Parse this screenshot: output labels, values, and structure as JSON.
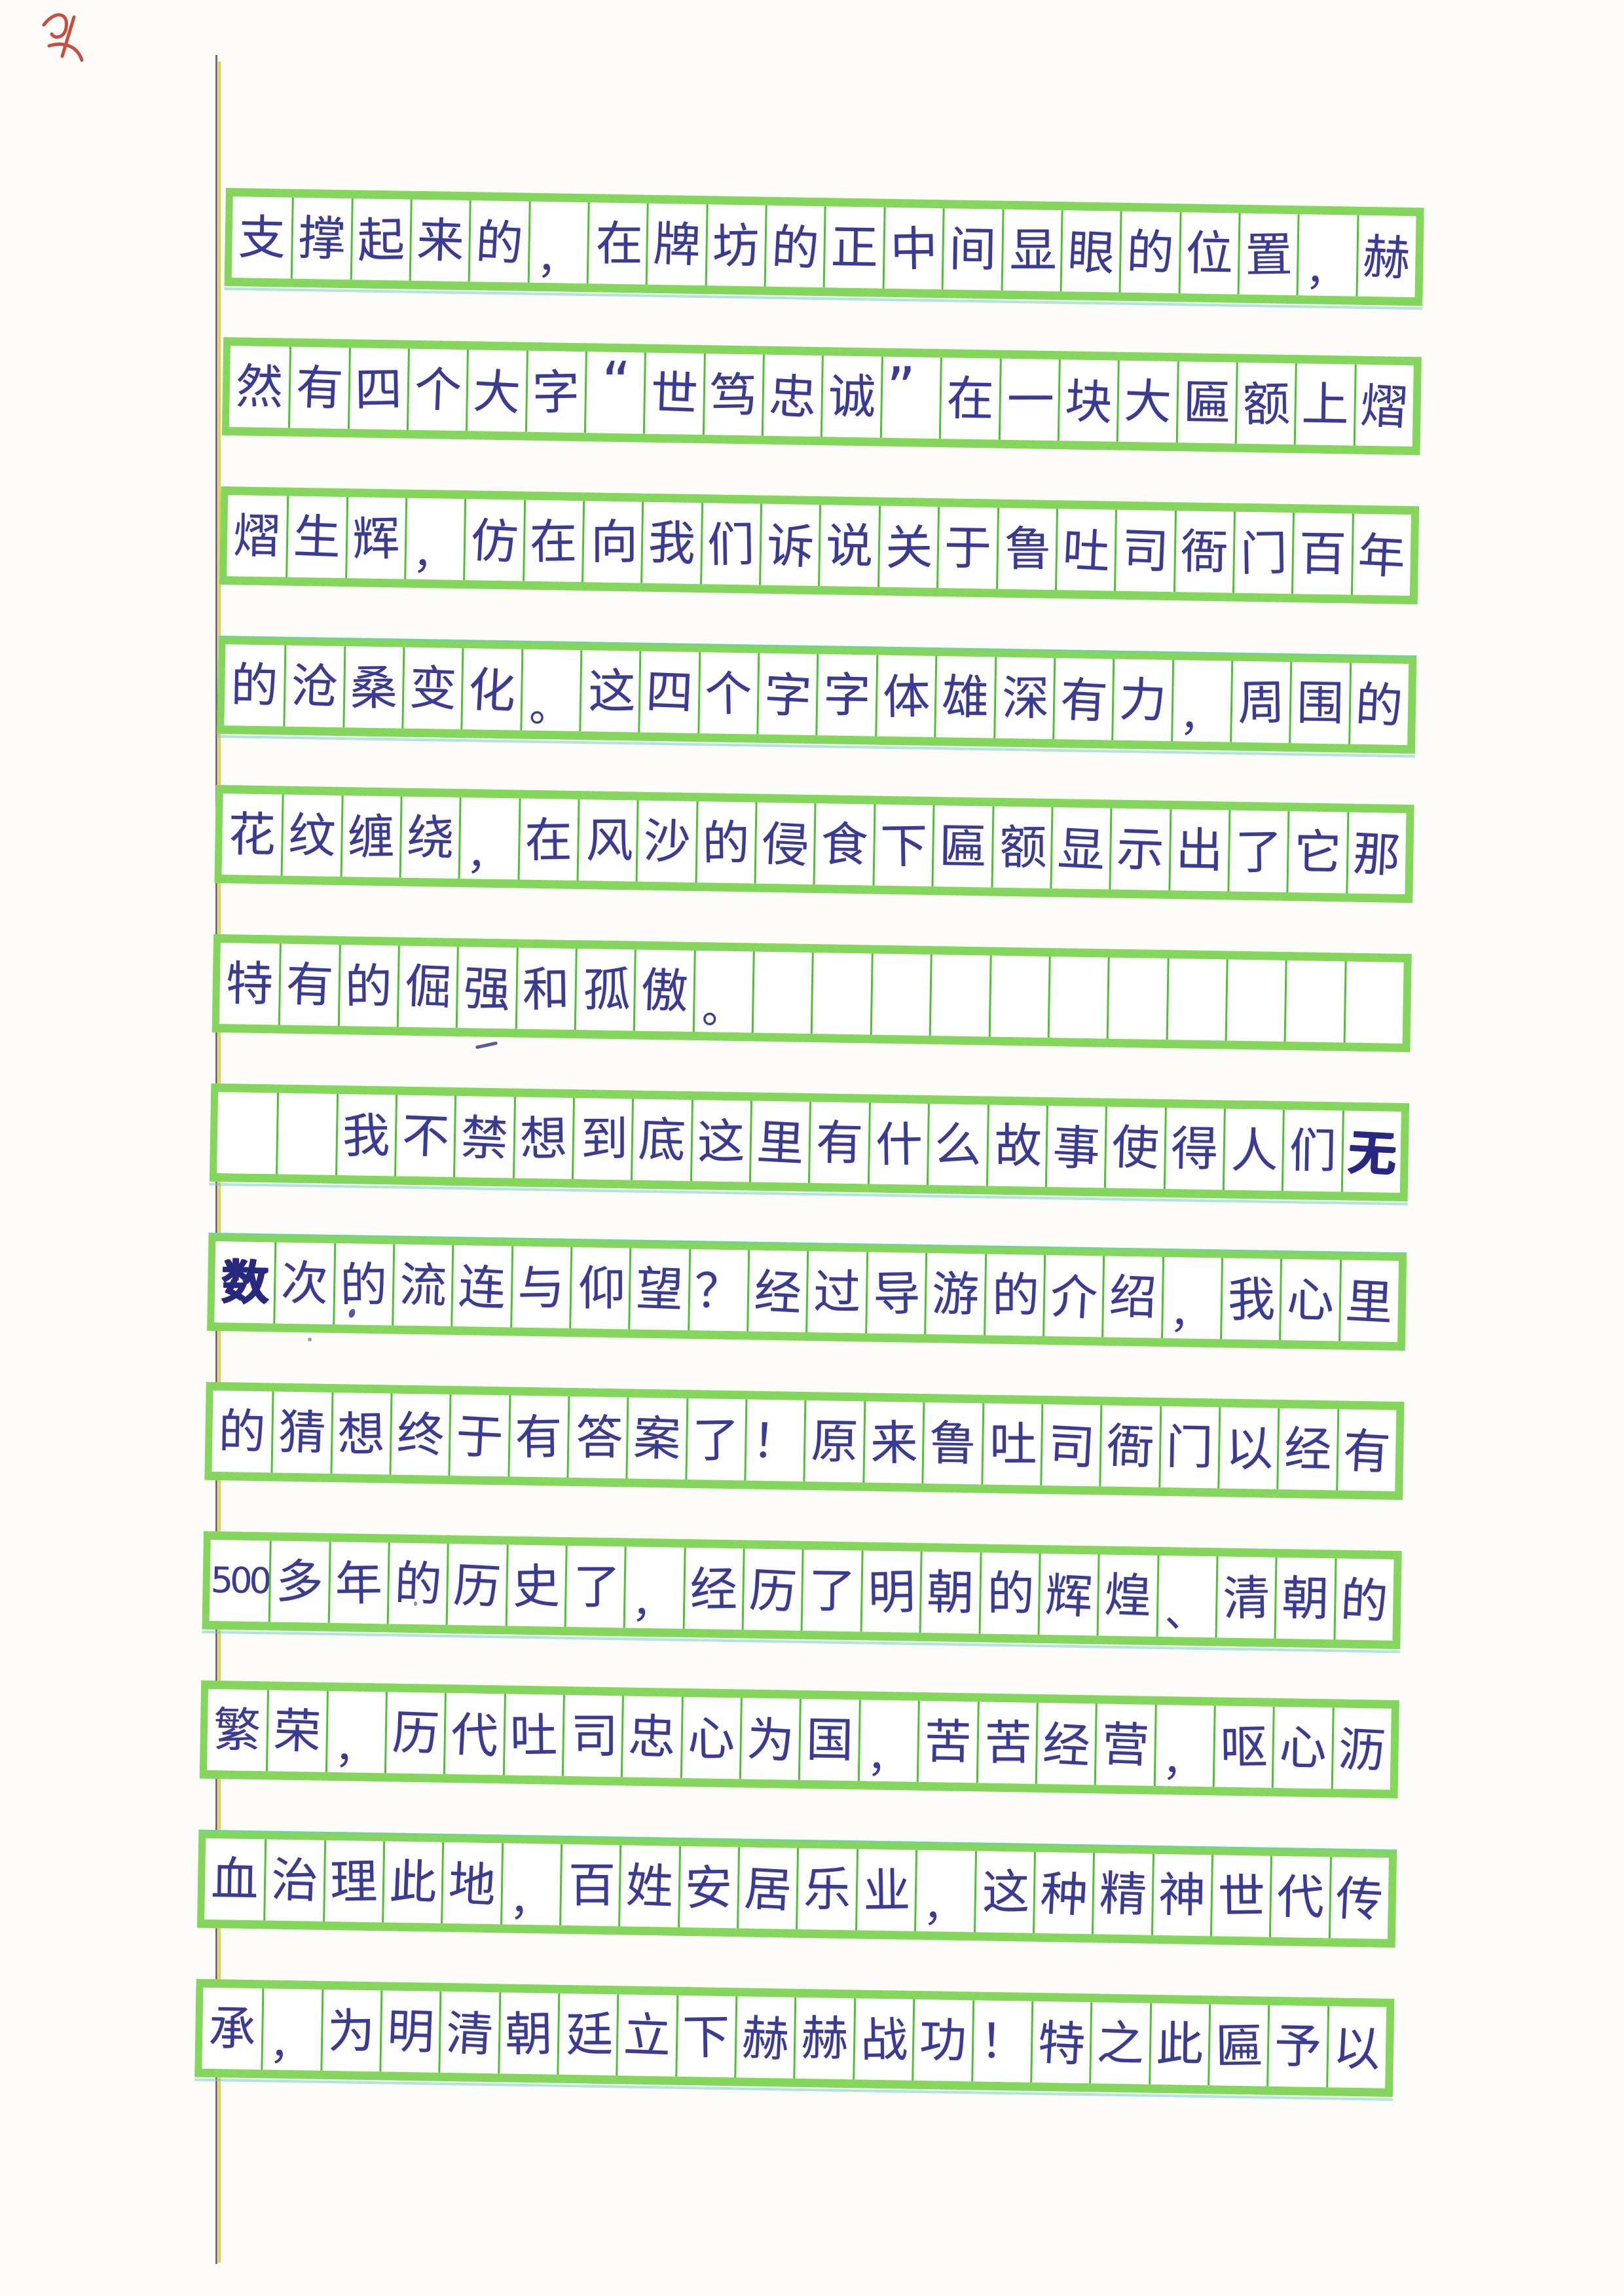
{
  "page": {
    "paper_color": "#fdfcf8",
    "cell_fill_color": "#ffffff",
    "grid_band_color": "#84d75c",
    "grid_line_color": "#50c136",
    "cyan_tint_color": "#62cdc0",
    "ink_color": "#3b3b94",
    "margin_line_dark_color": "#6e5666",
    "margin_line_yellow_color": "#e2cd3f",
    "red_mark_color": "#c63326",
    "columns_per_line": 20,
    "written_lines": 13
  },
  "lines": [
    [
      "支",
      "撑",
      "起",
      "来",
      "的",
      "，",
      "在",
      "牌",
      "坊",
      "的",
      "正",
      "中",
      "间",
      "显",
      "眼",
      "的",
      "位",
      "置",
      "，",
      "赫"
    ],
    [
      "然",
      "有",
      "四",
      "个",
      "大",
      "字",
      "“",
      "世",
      "笃",
      "忠",
      "诚",
      "”",
      "在",
      "一",
      "块",
      "大",
      "匾",
      "额",
      "上",
      "熠"
    ],
    [
      "熠",
      "生",
      "辉",
      "，",
      "仿",
      "在",
      "向",
      "我",
      "们",
      "诉",
      "说",
      "关",
      "于",
      "鲁",
      "吐",
      "司",
      "衙",
      "门",
      "百",
      "年"
    ],
    [
      "的",
      "沧",
      "桑",
      "变",
      "化",
      "。",
      "这",
      "四",
      "个",
      "字",
      "字",
      "体",
      "雄",
      "深",
      "有",
      "力",
      "，",
      "周",
      "围",
      "的"
    ],
    [
      "花",
      "纹",
      "缠",
      "绕",
      "，",
      "在",
      "风",
      "沙",
      "的",
      "侵",
      "食",
      "下",
      "匾",
      "额",
      "显",
      "示",
      "出",
      "了",
      "它",
      "那"
    ],
    [
      "特",
      "有",
      "的",
      "倔",
      "强",
      "和",
      "孤",
      "傲",
      "。",
      "",
      "",
      "",
      "",
      "",
      "",
      "",
      "",
      "",
      "",
      ""
    ],
    [
      "",
      "",
      "我",
      "不",
      "禁",
      "想",
      "到",
      "底",
      "这",
      "里",
      "有",
      "什",
      "么",
      "故",
      "事",
      "使",
      "得",
      "人",
      "们",
      "无"
    ],
    [
      "数",
      "次",
      "的",
      "流",
      "连",
      "与",
      "仰",
      "望",
      "？",
      "经",
      "过",
      "导",
      "游",
      "的",
      "介",
      "绍",
      "，",
      "我",
      "心",
      "里"
    ],
    [
      "的",
      "猜",
      "想",
      "终",
      "于",
      "有",
      "答",
      "案",
      "了",
      "！",
      "原",
      "来",
      "鲁",
      "吐",
      "司",
      "衙",
      "门",
      "以",
      "经",
      "有"
    ],
    [
      "500",
      "多",
      "年",
      "的",
      "历",
      "史",
      "了",
      "，",
      "经",
      "历",
      "了",
      "明",
      "朝",
      "的",
      "辉",
      "煌",
      "、",
      "清",
      "朝",
      "的"
    ],
    [
      "繁",
      "荣",
      "，",
      "历",
      "代",
      "吐",
      "司",
      "忠",
      "心",
      "为",
      "国",
      "，",
      "苦",
      "苦",
      "经",
      "营",
      "，",
      "呕",
      "心",
      "沥"
    ],
    [
      "血",
      "治",
      "理",
      "此",
      "地",
      "，",
      "百",
      "姓",
      "安",
      "居",
      "乐",
      "业",
      "，",
      "这",
      "种",
      "精",
      "神",
      "世",
      "代",
      "传"
    ],
    [
      "承",
      "，",
      "为",
      "明",
      "清",
      "朝",
      "廷",
      "立",
      "下",
      "赫",
      "赫",
      "战",
      "功",
      "！",
      "特",
      "之",
      "此",
      "匾",
      "予",
      "以"
    ]
  ],
  "emphasis": [
    [
      6,
      19
    ],
    [
      7,
      0
    ]
  ]
}
